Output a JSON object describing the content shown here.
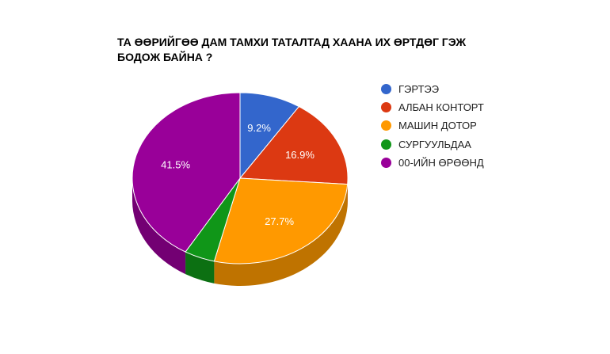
{
  "chart_data": {
    "type": "pie",
    "style": "3d",
    "title_lines": [
      "ТА ӨӨРИЙГӨӨ ДАМ ТАМХИ ТАТАЛТАД ХААНА ИХ ӨРТДӨГ ГЭЖ",
      "БОДОЖ БАЙНА ?"
    ],
    "legend_position": "right",
    "slices": [
      {
        "label": "ГЭРТЭЭ",
        "value": 9.2,
        "value_label": "9.2%",
        "color": "#3366cc",
        "side_color": "#25499a"
      },
      {
        "label": "АЛБАН КОНТОРТ",
        "value": 16.9,
        "value_label": "16.9%",
        "color": "#dc3912",
        "side_color": "#a52a0e"
      },
      {
        "label": "МАШИН ДОТОР",
        "value": 27.7,
        "value_label": "27.7%",
        "color": "#ff9900",
        "side_color": "#bf7300"
      },
      {
        "label": "СУРГУУЛЬДАА",
        "value": 4.6,
        "value_label": "",
        "color": "#109618",
        "side_color": "#0c7012"
      },
      {
        "label": "00-ИЙН ӨРӨӨНД",
        "value": 41.5,
        "value_label": "41.5%",
        "color": "#990099",
        "side_color": "#730073"
      }
    ]
  }
}
